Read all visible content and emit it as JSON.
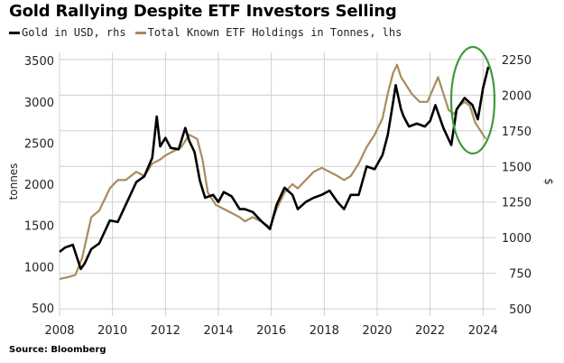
{
  "header": {
    "title": "Gold Rallying Despite ETF Investors Selling"
  },
  "legend": {
    "gold_label": "Gold in USD, rhs",
    "etf_label": "Total Known ETF Holdings in Tonnes, lhs"
  },
  "footer": {
    "source": "Source: Bloomberg"
  },
  "colors": {
    "gold_series": "#000000",
    "etf_series": "#a98b5e",
    "highlight_ellipse": "#3f9a3a",
    "gridline": "#cfcfcf"
  },
  "chart_data": {
    "type": "line",
    "x_range": [
      2008,
      2024.5
    ],
    "x_ticks": [
      "2008",
      "2010",
      "2012",
      "2014",
      "2016",
      "2018",
      "2020",
      "2022",
      "2024"
    ],
    "left_axis": {
      "label": "tonnes",
      "range": [
        400,
        3600
      ],
      "ticks": [
        "500",
        "1000",
        "1500",
        "2000",
        "2500",
        "3000",
        "3500"
      ]
    },
    "right_axis": {
      "label": "$",
      "range": [
        450,
        2300
      ],
      "ticks": [
        "500",
        "750",
        "1000",
        "1250",
        "1500",
        "1750",
        "2000",
        "2250"
      ]
    },
    "grid": true,
    "legend_position": "top-left",
    "series": [
      {
        "name": "Gold in USD, rhs",
        "axis": "right",
        "x": [
          2008.0,
          2008.2,
          2008.5,
          2008.8,
          2008.95,
          2009.2,
          2009.5,
          2009.9,
          2010.2,
          2010.5,
          2010.9,
          2011.2,
          2011.5,
          2011.67,
          2011.8,
          2012.0,
          2012.2,
          2012.5,
          2012.75,
          2012.9,
          2013.1,
          2013.3,
          2013.5,
          2013.8,
          2014.0,
          2014.2,
          2014.5,
          2014.8,
          2015.0,
          2015.3,
          2015.6,
          2015.95,
          2016.2,
          2016.5,
          2016.8,
          2017.0,
          2017.3,
          2017.6,
          2017.9,
          2018.2,
          2018.5,
          2018.75,
          2019.0,
          2019.3,
          2019.6,
          2019.9,
          2020.2,
          2020.4,
          2020.6,
          2020.7,
          2020.9,
          2021.0,
          2021.2,
          2021.5,
          2021.8,
          2022.0,
          2022.2,
          2022.5,
          2022.8,
          2023.0,
          2023.3,
          2023.6,
          2023.8,
          2024.0,
          2024.2
        ],
        "y": [
          900,
          930,
          950,
          780,
          820,
          920,
          960,
          1120,
          1110,
          1230,
          1390,
          1430,
          1560,
          1850,
          1640,
          1700,
          1630,
          1620,
          1770,
          1680,
          1600,
          1400,
          1280,
          1300,
          1250,
          1320,
          1290,
          1200,
          1200,
          1180,
          1120,
          1060,
          1230,
          1350,
          1300,
          1200,
          1250,
          1280,
          1300,
          1330,
          1250,
          1200,
          1300,
          1300,
          1500,
          1480,
          1580,
          1720,
          1950,
          2070,
          1900,
          1850,
          1780,
          1800,
          1780,
          1820,
          1930,
          1770,
          1650,
          1900,
          1980,
          1930,
          1830,
          2050,
          2200
        ]
      },
      {
        "name": "Total Known ETF Holdings in Tonnes, lhs",
        "axis": "left",
        "x": [
          2008.0,
          2008.3,
          2008.6,
          2008.85,
          2009.2,
          2009.5,
          2009.9,
          2010.2,
          2010.5,
          2010.9,
          2011.2,
          2011.5,
          2011.8,
          2012.0,
          2012.3,
          2012.6,
          2012.9,
          2013.2,
          2013.4,
          2013.6,
          2013.9,
          2014.2,
          2014.5,
          2014.8,
          2015.0,
          2015.3,
          2015.6,
          2015.95,
          2016.2,
          2016.5,
          2016.8,
          2017.0,
          2017.3,
          2017.6,
          2017.9,
          2018.2,
          2018.5,
          2018.75,
          2019.0,
          2019.3,
          2019.6,
          2019.9,
          2020.2,
          2020.4,
          2020.6,
          2020.75,
          2020.9,
          2021.1,
          2021.3,
          2021.6,
          2021.9,
          2022.1,
          2022.3,
          2022.5,
          2022.7,
          2022.9,
          2023.1,
          2023.3,
          2023.5,
          2023.7,
          2023.9,
          2024.0,
          2024.1
        ],
        "y": [
          850,
          870,
          900,
          1100,
          1600,
          1680,
          1950,
          2050,
          2050,
          2150,
          2100,
          2250,
          2300,
          2350,
          2400,
          2450,
          2600,
          2550,
          2300,
          1900,
          1750,
          1700,
          1650,
          1600,
          1550,
          1600,
          1550,
          1480,
          1700,
          1900,
          2000,
          1950,
          2050,
          2150,
          2200,
          2150,
          2100,
          2050,
          2100,
          2250,
          2450,
          2600,
          2800,
          3100,
          3350,
          3450,
          3300,
          3200,
          3100,
          3000,
          3000,
          3150,
          3300,
          3100,
          2900,
          2850,
          2950,
          3000,
          2950,
          2750,
          2650,
          2600,
          2550
        ]
      }
    ]
  }
}
